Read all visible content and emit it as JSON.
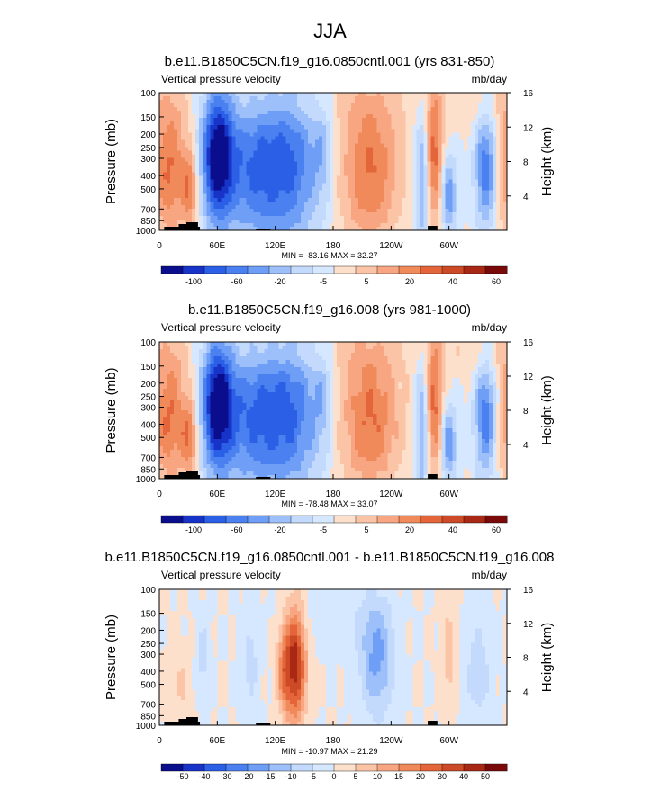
{
  "main_title": "JJA",
  "colors": {
    "dark_blue": "#0a0e8c",
    "blue": "#2a5fe6",
    "light_blue": "#d6e8ff",
    "light_orange": "#fde0cc",
    "orange": "#f08a5a",
    "dark_red": "#7a0a0a",
    "terrain": "#000000"
  },
  "chart_data": [
    {
      "type": "heatmap",
      "title": "b.e11.B1850C5CN.f19_g16.0850cntl.001 (yrs 831-850)",
      "left_label": "Vertical pressure velocity",
      "right_label": "mb/day",
      "ylabel": "Pressure (mb)",
      "y2label": "Height (km)",
      "y_ticks": [
        "100",
        "150",
        "200",
        "250",
        "300",
        "400",
        "500",
        "700",
        "850",
        "1000"
      ],
      "y2_ticks": [
        "16",
        "12",
        "8",
        "4"
      ],
      "x_ticks": [
        "0",
        "60E",
        "120E",
        "180",
        "120W",
        "60W"
      ],
      "stats": "MIN = -83.16  MAX = 32.27",
      "colorbar_labels": [
        "-100",
        "-60",
        "-20",
        "-5",
        "5",
        "20",
        "40",
        "60"
      ],
      "colorbar_colors": [
        "#0a0e8c",
        "#1733c8",
        "#2a5fe6",
        "#4a80f0",
        "#6e9ef6",
        "#9ec0fa",
        "#c4dafd",
        "#d6e8ff",
        "#fde0cc",
        "#fcc4a6",
        "#f8a582",
        "#f08a5a",
        "#e4653a",
        "#cc4a26",
        "#a82814",
        "#7a0a0a"
      ]
    },
    {
      "type": "heatmap",
      "title": "b.e11.B1850C5CN.f19_g16.008 (yrs 981-1000)",
      "left_label": "Vertical pressure velocity",
      "right_label": "mb/day",
      "ylabel": "Pressure (mb)",
      "y2label": "Height (km)",
      "y_ticks": [
        "100",
        "150",
        "200",
        "250",
        "300",
        "400",
        "500",
        "700",
        "850",
        "1000"
      ],
      "y2_ticks": [
        "16",
        "12",
        "8",
        "4"
      ],
      "x_ticks": [
        "0",
        "60E",
        "120E",
        "180",
        "120W",
        "60W"
      ],
      "stats": "MIN = -78.48  MAX = 33.07",
      "colorbar_labels": [
        "-100",
        "-60",
        "-20",
        "-5",
        "5",
        "20",
        "40",
        "60"
      ],
      "colorbar_colors": [
        "#0a0e8c",
        "#1733c8",
        "#2a5fe6",
        "#4a80f0",
        "#6e9ef6",
        "#9ec0fa",
        "#c4dafd",
        "#d6e8ff",
        "#fde0cc",
        "#fcc4a6",
        "#f8a582",
        "#f08a5a",
        "#e4653a",
        "#cc4a26",
        "#a82814",
        "#7a0a0a"
      ]
    },
    {
      "type": "heatmap",
      "title": "b.e11.B1850C5CN.f19_g16.0850cntl.001 - b.e11.B1850C5CN.f19_g16.008",
      "left_label": "Vertical pressure velocity",
      "right_label": "mb/day",
      "ylabel": "Pressure (mb)",
      "y2label": "Height (km)",
      "y_ticks": [
        "100",
        "150",
        "200",
        "250",
        "300",
        "400",
        "500",
        "700",
        "850",
        "1000"
      ],
      "y2_ticks": [
        "16",
        "12",
        "8",
        "4"
      ],
      "x_ticks": [
        "0",
        "60E",
        "120E",
        "180",
        "120W",
        "60W"
      ],
      "stats": "MIN = -10.97  MAX = 21.29",
      "colorbar_labels": [
        "-50",
        "-40",
        "-30",
        "-20",
        "-15",
        "-10",
        "-5",
        "0",
        "5",
        "10",
        "15",
        "20",
        "30",
        "40",
        "50"
      ],
      "colorbar_colors": [
        "#0a0e8c",
        "#1733c8",
        "#2a5fe6",
        "#4a80f0",
        "#6e9ef6",
        "#9ec0fa",
        "#c4dafd",
        "#d6e8ff",
        "#fde0cc",
        "#fcc4a6",
        "#f8a582",
        "#f08a5a",
        "#e4653a",
        "#cc4a26",
        "#a82814",
        "#7a0a0a"
      ]
    }
  ]
}
